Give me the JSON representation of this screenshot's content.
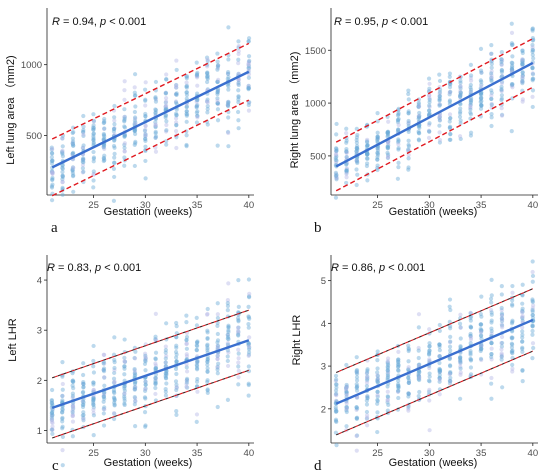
{
  "colors": {
    "point": "#6aaad6",
    "point_alt": "#b6b9e6",
    "fit": "#3a6fcf",
    "band_red": "#e0191f",
    "band_dark": "#3d2222"
  },
  "chart_data": [
    {
      "type": "scatter",
      "panel_label": "a",
      "annotation": {
        "r_label": "R",
        "r_value": " = 0.94, ",
        "p_label": "p",
        "p_value": " < 0.001"
      },
      "xlabel": "Gestation (weeks)",
      "ylabel": "Left lung area （mm2)",
      "xlim": [
        20.5,
        40.5
      ],
      "ylim": [
        80,
        1400
      ],
      "xticks": [
        25,
        30,
        35,
        40
      ],
      "yticks": [
        500,
        1000
      ],
      "x_range": [
        21,
        40
      ],
      "fit": [
        [
          21,
          275
        ],
        [
          40,
          950
        ]
      ],
      "band_offset": 200,
      "band_style": "red",
      "spread": 150
    },
    {
      "type": "scatter",
      "panel_label": "b",
      "annotation": {
        "r_label": "R",
        "r_value": " = 0.95, ",
        "p_label": "p",
        "p_value": " < 0.001"
      },
      "xlabel": "Gestation (weeks)",
      "ylabel": "Right lung area （mm2)",
      "xlim": [
        20.5,
        40.5
      ],
      "ylim": [
        130,
        1900
      ],
      "xticks": [
        25,
        30,
        35,
        40
      ],
      "yticks": [
        500,
        1000,
        1500
      ],
      "x_range": [
        21,
        40
      ],
      "fit": [
        [
          21,
          400
        ],
        [
          40,
          1380
        ]
      ],
      "band_offset": 230,
      "band_style": "red",
      "spread": 170
    },
    {
      "type": "scatter",
      "panel_label": "c",
      "annotation": {
        "r_label": "R",
        "r_value": " = 0.83, ",
        "p_label": "p",
        "p_value": " < 0.001"
      },
      "xlabel": "Gestation (weeks)",
      "ylabel": "Left LHR",
      "xlim": [
        20.5,
        40.5
      ],
      "ylim": [
        0.75,
        4.5
      ],
      "xticks": [
        25,
        30,
        35,
        40
      ],
      "yticks": [
        1,
        2,
        3,
        4
      ],
      "x_range": [
        21,
        40
      ],
      "fit": [
        [
          21,
          1.45
        ],
        [
          40,
          2.8
        ]
      ],
      "band_offset": 0.6,
      "band_style": "mixed",
      "spread": 0.42
    },
    {
      "type": "scatter",
      "panel_label": "d",
      "annotation": {
        "r_label": "R",
        "r_value": " = 0.86, ",
        "p_label": "p",
        "p_value": " < 0.001"
      },
      "xlabel": "Gestation (weeks)",
      "ylabel": "Right LHR",
      "xlim": [
        20.5,
        40.5
      ],
      "ylim": [
        1.2,
        5.6
      ],
      "xticks": [
        25,
        30,
        35,
        40
      ],
      "yticks": [
        2,
        3,
        4,
        5
      ],
      "x_range": [
        21,
        40
      ],
      "fit": [
        [
          21,
          2.12
        ],
        [
          40,
          4.08
        ]
      ],
      "band_offset": 0.73,
      "band_style": "mixed",
      "spread": 0.5
    }
  ]
}
